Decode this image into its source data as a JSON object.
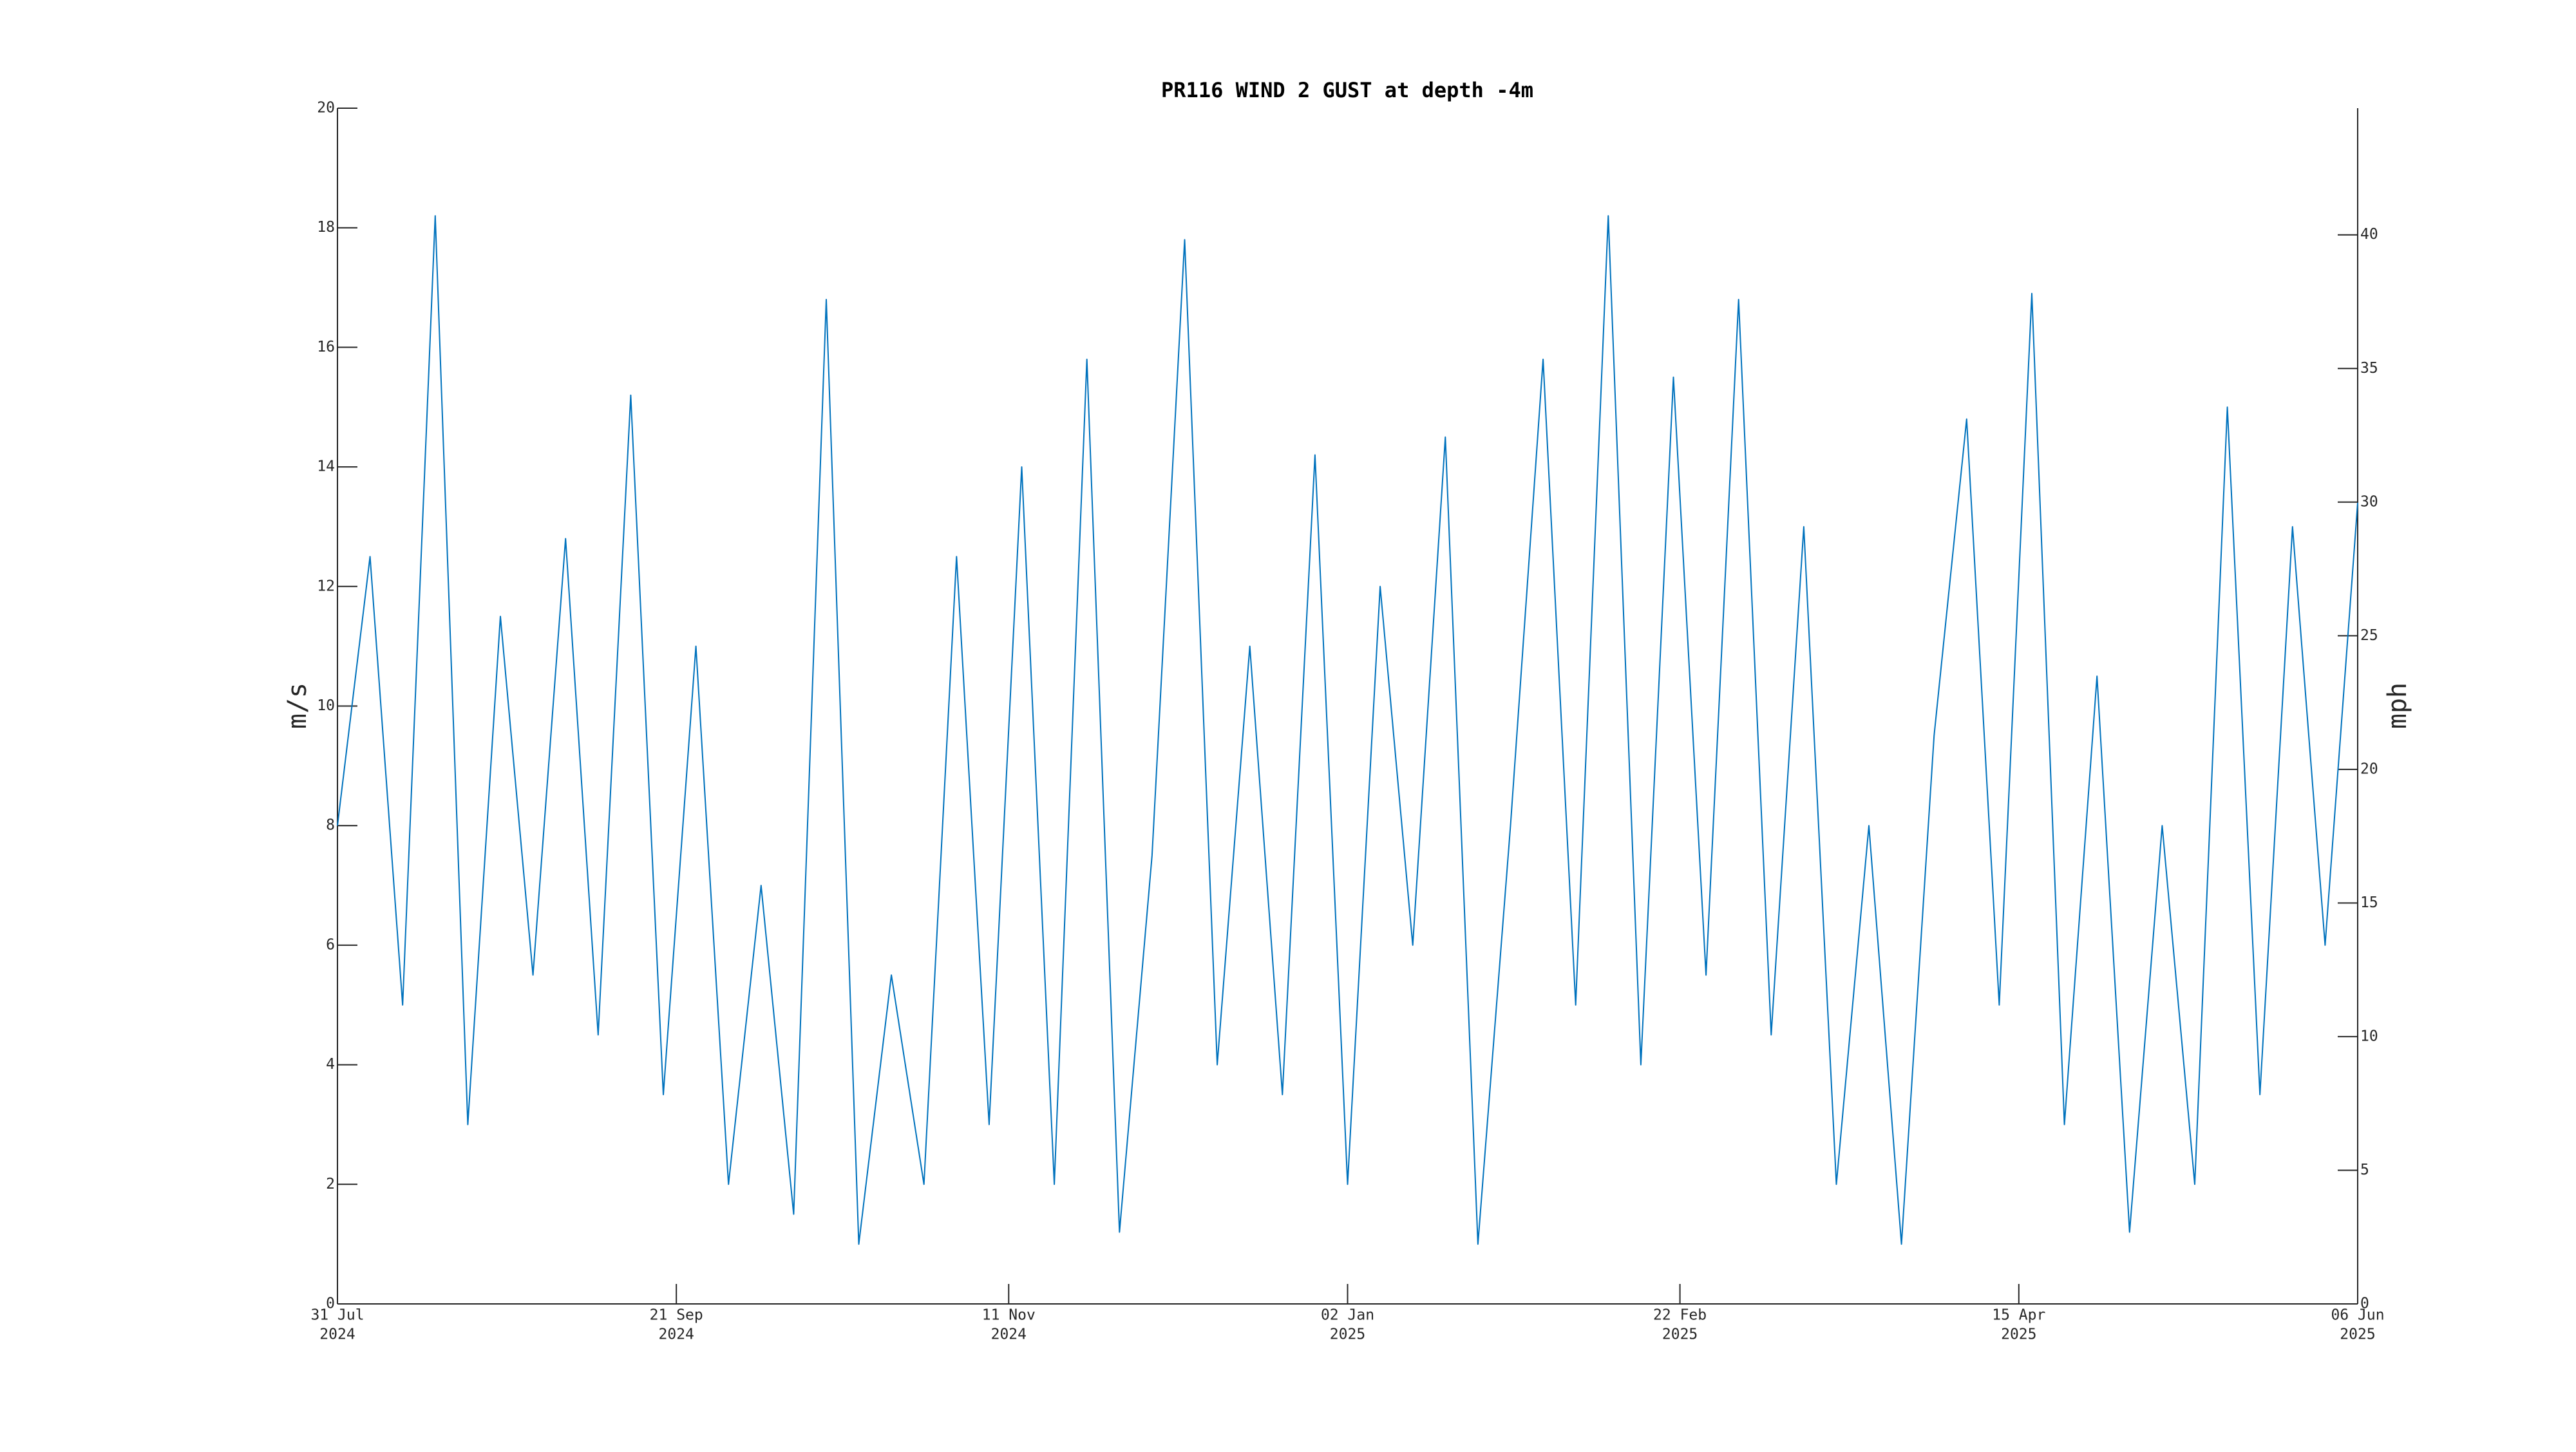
{
  "chart_data": {
    "type": "line",
    "title": "PR116 WIND 2 GUST at depth -4m",
    "y_label": "m/s",
    "y2_label": "mph",
    "x": [
      "2024-07-31",
      "2024-08-05",
      "2024-08-10",
      "2024-08-15",
      "2024-08-20",
      "2024-08-25",
      "2024-08-30",
      "2024-09-04",
      "2024-09-09",
      "2024-09-14",
      "2024-09-19",
      "2024-09-24",
      "2024-09-29",
      "2024-10-04",
      "2024-10-09",
      "2024-10-14",
      "2024-10-19",
      "2024-10-24",
      "2024-10-29",
      "2024-11-03",
      "2024-11-08",
      "2024-11-13",
      "2024-11-18",
      "2024-11-23",
      "2024-11-28",
      "2024-12-03",
      "2024-12-08",
      "2024-12-13",
      "2024-12-18",
      "2024-12-23",
      "2024-12-28",
      "2025-01-02",
      "2025-01-07",
      "2025-01-12",
      "2025-01-17",
      "2025-01-22",
      "2025-01-27",
      "2025-02-01",
      "2025-02-06",
      "2025-02-11",
      "2025-02-16",
      "2025-02-21",
      "2025-02-26",
      "2025-03-03",
      "2025-03-08",
      "2025-03-13",
      "2025-03-18",
      "2025-03-23",
      "2025-03-28",
      "2025-04-02",
      "2025-04-07",
      "2025-04-12",
      "2025-04-17",
      "2025-04-22",
      "2025-04-27",
      "2025-05-02",
      "2025-05-07",
      "2025-05-12",
      "2025-05-17",
      "2025-05-22",
      "2025-05-27",
      "2025-06-01",
      "2025-06-06"
    ],
    "series": [
      {
        "name": "WIND 2 GUST",
        "color": "#0072bd",
        "values": [
          8,
          12.5,
          5,
          18.2,
          3,
          11.5,
          5.5,
          12.8,
          4.5,
          15.2,
          3.5,
          11,
          2,
          7,
          1.5,
          16.8,
          1,
          5.5,
          2,
          12.5,
          3,
          14,
          2,
          15.8,
          1.2,
          7.5,
          17.8,
          4,
          11,
          3.5,
          14.2,
          2,
          12,
          6,
          14.5,
          1,
          8,
          15.8,
          5,
          18.2,
          4,
          15.5,
          5.5,
          16.8,
          4.5,
          13,
          2,
          8,
          1,
          9.5,
          14.8,
          5,
          16.9,
          3,
          10.5,
          1.2,
          8,
          2,
          15,
          3.5,
          13,
          6,
          13.4
        ]
      }
    ],
    "xlim": [
      "2024-07-31",
      "2025-06-06"
    ],
    "xticks": [
      {
        "value": "2024-07-31",
        "label": [
          "31 Jul",
          "2024"
        ]
      },
      {
        "value": "2024-09-21",
        "label": [
          "21 Sep",
          "2024"
        ]
      },
      {
        "value": "2024-11-11",
        "label": [
          "11 Nov",
          "2024"
        ]
      },
      {
        "value": "2025-01-02",
        "label": [
          "02 Jan",
          "2025"
        ]
      },
      {
        "value": "2025-02-22",
        "label": [
          "22 Feb",
          "2025"
        ]
      },
      {
        "value": "2025-04-15",
        "label": [
          "15 Apr",
          "2025"
        ]
      },
      {
        "value": "2025-06-06",
        "label": [
          "06 Jun",
          "2025"
        ]
      }
    ],
    "ylim": [
      0,
      20
    ],
    "yticks": [
      0,
      2,
      4,
      6,
      8,
      10,
      12,
      14,
      16,
      18,
      20
    ],
    "y2lim": [
      0,
      44.74
    ],
    "y2ticks": [
      0,
      5,
      10,
      15,
      20,
      25,
      30,
      35,
      40
    ],
    "grid": false
  }
}
